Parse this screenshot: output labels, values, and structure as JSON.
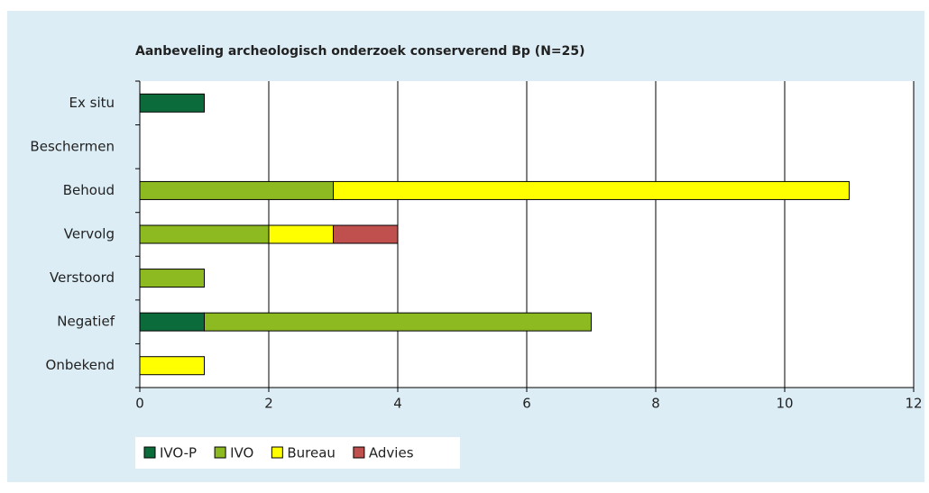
{
  "chart_data": {
    "type": "bar",
    "orientation": "horizontal",
    "stacked": true,
    "title": "Aanbeveling archeologisch onderzoek conserverend Bp (N=25)",
    "categories": [
      "Ex situ",
      "Beschermen",
      "Behoud",
      "Vervolg",
      "Verstoord",
      "Negatief",
      "Onbekend"
    ],
    "series": [
      {
        "name": "IVO-P",
        "color": "#0b6b3a",
        "values": [
          1,
          0,
          0,
          0,
          0,
          1,
          0
        ]
      },
      {
        "name": "IVO",
        "color": "#8dba21",
        "values": [
          0,
          0,
          3,
          2,
          1,
          6,
          0
        ]
      },
      {
        "name": "Bureau",
        "color": "#ffff00",
        "values": [
          0,
          0,
          8,
          1,
          0,
          0,
          1
        ]
      },
      {
        "name": "Advies",
        "color": "#c0504d",
        "values": [
          0,
          0,
          0,
          1,
          0,
          0,
          0
        ]
      }
    ],
    "xlim": [
      0,
      12
    ],
    "xticks": [
      0,
      2,
      4,
      6,
      8,
      10,
      12
    ],
    "grid": true,
    "legend": "bottom"
  }
}
